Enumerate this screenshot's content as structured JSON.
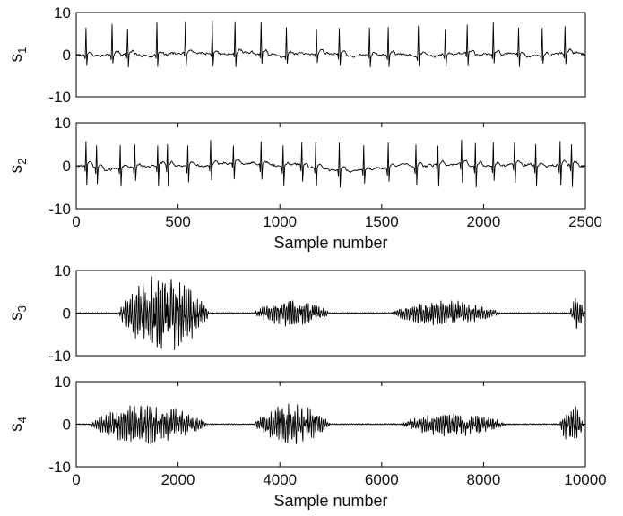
{
  "chart_data": [
    {
      "type": "line",
      "id": "s1",
      "ylabel": "s",
      "ylabel_subscript": "1",
      "ylim": [
        -10,
        10
      ],
      "yticks": [
        -10,
        0,
        10
      ],
      "xlim": [
        0,
        2500
      ],
      "xticks": [],
      "xlabel": "",
      "signal": "ecg",
      "beat_positions": [
        45,
        175,
        250,
        395,
        535,
        665,
        780,
        905,
        1030,
        1180,
        1290,
        1440,
        1530,
        1680,
        1810,
        1920,
        2045,
        2170,
        2285,
        2400
      ],
      "peak_max": 8,
      "trough_min": -3,
      "baseline_range": [
        -1,
        1
      ],
      "grid": false
    },
    {
      "type": "line",
      "id": "s2",
      "ylabel": "s",
      "ylabel_subscript": "2",
      "ylim": [
        -10,
        10
      ],
      "yticks": [
        -10,
        0,
        10
      ],
      "xlim": [
        0,
        2500
      ],
      "xticks": [
        0,
        500,
        1000,
        1500,
        2000,
        2500
      ],
      "xlabel": "Sample number",
      "signal": "ecg",
      "beat_positions": [
        45,
        100,
        215,
        285,
        400,
        445,
        545,
        660,
        770,
        905,
        1015,
        1105,
        1175,
        1290,
        1410,
        1530,
        1665,
        1775,
        1890,
        1960,
        2045,
        2150,
        2255,
        2375,
        2430
      ],
      "peak_max": 6,
      "trough_min": -5,
      "baseline_range": [
        -1.5,
        1.5
      ],
      "grid": false
    },
    {
      "type": "line",
      "id": "s3",
      "ylabel": "s",
      "ylabel_subscript": "3",
      "ylim": [
        -10,
        10
      ],
      "yticks": [
        -10,
        0,
        10
      ],
      "xlim": [
        0,
        10000
      ],
      "xticks": [],
      "xlabel": "",
      "signal": "speech",
      "bursts": [
        {
          "start": 850,
          "end": 2750,
          "amplitude": 8.5
        },
        {
          "start": 3500,
          "end": 5100,
          "amplitude": 3.0
        },
        {
          "start": 6200,
          "end": 8500,
          "amplitude": 2.8
        },
        {
          "start": 9700,
          "end": 10000,
          "amplitude": 3.8
        }
      ],
      "grid": false
    },
    {
      "type": "line",
      "id": "s4",
      "ylabel": "s",
      "ylabel_subscript": "4",
      "ylim": [
        -10,
        10
      ],
      "yticks": [
        -10,
        0,
        10
      ],
      "xlim": [
        0,
        10000
      ],
      "xticks": [
        0,
        2000,
        4000,
        6000,
        8000,
        10000
      ],
      "xlabel": "Sample number",
      "signal": "speech",
      "bursts": [
        {
          "start": 300,
          "end": 2750,
          "amplitude": 4.5
        },
        {
          "start": 3500,
          "end": 5100,
          "amplitude": 4.5
        },
        {
          "start": 6400,
          "end": 8600,
          "amplitude": 2.8
        },
        {
          "start": 9500,
          "end": 10000,
          "amplitude": 4.5
        }
      ],
      "grid": false
    }
  ]
}
